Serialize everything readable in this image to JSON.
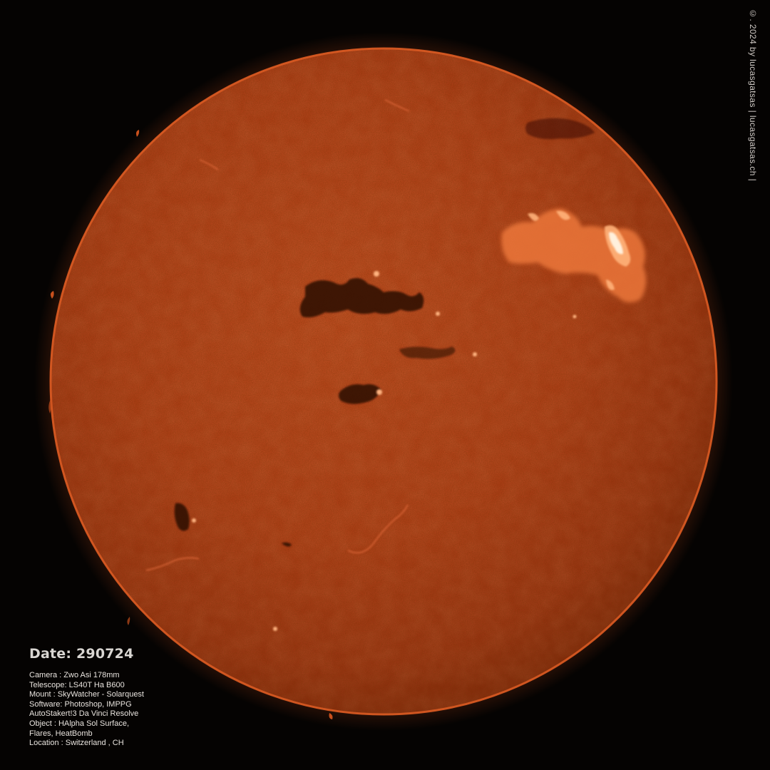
{
  "photo": {
    "subject": "H-alpha image of the Sun",
    "colors": {
      "background": "#050302",
      "disk_center": "#c8451c",
      "disk_edge": "#8a2608",
      "limb": "#d9531c",
      "flare": "#ffd2a8",
      "filament": "#2a0a04"
    }
  },
  "caption": {
    "date": "Date: 290724",
    "lines": [
      "Camera :  Zwo Asi 178mm",
      "Telescope: LS40T Ha B600",
      "Mount : SkyWatcher - Solarquest",
      "Software: Photoshop, IMPPG",
      "AutoStakert!3 Da Vinci Resolve",
      "Object : HAlpha Sol Surface,",
      "Flares, HeatBomb",
      "Location : Switzerland , CH"
    ]
  },
  "copyright": "©. 2024 by lucasgatsas | lucasgatsas.ch |"
}
